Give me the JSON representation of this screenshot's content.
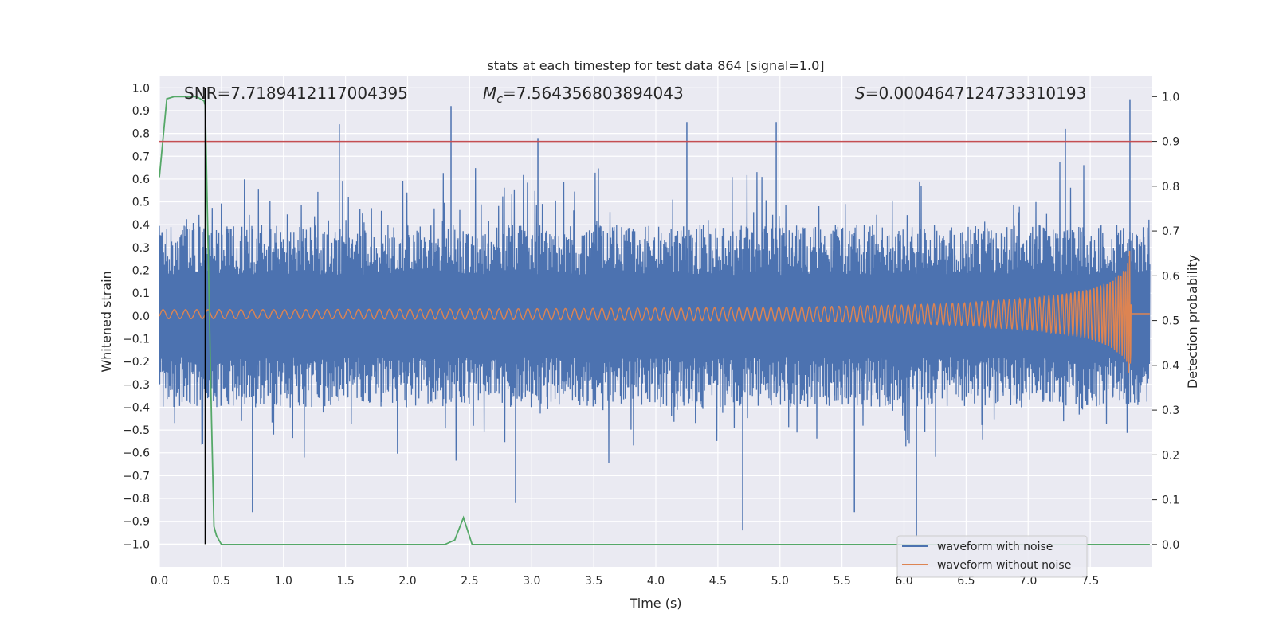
{
  "chart_data": {
    "type": "line",
    "title": "stats at each timestep for test data 864 [signal=1.0]",
    "xlabel": "Time (s)",
    "ylabel": "Whitened strain",
    "y2label": "Detection probability",
    "xlim": [
      0.0,
      8.0
    ],
    "ylim": [
      -1.1,
      1.05
    ],
    "y2lim": [
      -0.05,
      1.045
    ],
    "xticks": [
      "0.0",
      "0.5",
      "1.0",
      "1.5",
      "2.0",
      "2.5",
      "3.0",
      "3.5",
      "4.0",
      "4.5",
      "5.0",
      "5.5",
      "6.0",
      "6.5",
      "7.0",
      "7.5"
    ],
    "yticks": [
      "1.0",
      "0.9",
      "0.8",
      "0.7",
      "0.6",
      "0.5",
      "0.4",
      "0.3",
      "0.2",
      "0.1",
      "0.0",
      "-0.1",
      "-0.2",
      "-0.3",
      "-0.4",
      "-0.5",
      "-0.6",
      "-0.7",
      "-0.8",
      "-0.9",
      "-1.0"
    ],
    "y2ticks": [
      "1.0",
      "0.9",
      "0.8",
      "0.7",
      "0.6",
      "0.5",
      "0.4",
      "0.3",
      "0.2",
      "0.1",
      "0.0"
    ],
    "annotations": {
      "snr": "SNR=7.7189412117004395",
      "mc_symbol": "M",
      "mc_sub": "c",
      "mc_value": "=7.564356803894043",
      "s_symbol": "S",
      "s_value": "=0.0004647124733310193"
    },
    "legend": [
      "waveform with noise",
      "waveform without noise"
    ],
    "legend_position": "lower-right",
    "series": [
      {
        "name": "waveform with noise",
        "color": "#4c72b0",
        "envelope": "noise band roughly ±0.3 to ±0.5 with spikes up to 0.95 and down to -0.96",
        "spikes_x": [
          0.75,
          1.45,
          2.35,
          2.87,
          3.05,
          4.25,
          4.7,
          4.97,
          5.6,
          6.1,
          7.3,
          7.82
        ],
        "spikes_y": [
          -0.86,
          0.84,
          0.92,
          -0.82,
          0.78,
          0.85,
          -0.94,
          0.85,
          -0.86,
          -0.97,
          0.82,
          0.95
        ]
      },
      {
        "name": "waveform without noise",
        "color": "#dd8452",
        "description": "chirp signal, small amplitude growing until merger near 7.82 s",
        "x": [
          0.0,
          1.0,
          2.0,
          3.0,
          4.0,
          5.0,
          6.0,
          6.5,
          7.0,
          7.3,
          7.5,
          7.65,
          7.75,
          7.8,
          7.82,
          7.84,
          8.0
        ],
        "amplitude": [
          0.02,
          0.02,
          0.022,
          0.024,
          0.027,
          0.03,
          0.04,
          0.05,
          0.07,
          0.09,
          0.11,
          0.14,
          0.18,
          0.22,
          0.3,
          0.0,
          0.0
        ]
      },
      {
        "name": "detection probability",
        "axis": "right",
        "color": "#55a868",
        "x": [
          0.0,
          0.06,
          0.12,
          0.18,
          0.24,
          0.3,
          0.36,
          0.37,
          0.42,
          0.44,
          0.46,
          0.5,
          2.3,
          2.38,
          2.45,
          2.52,
          7.98
        ],
        "values": [
          0.82,
          0.995,
          1.0,
          1.0,
          1.0,
          1.0,
          0.99,
          0.98,
          0.28,
          0.04,
          0.02,
          0.0,
          0.0,
          0.01,
          0.06,
          0.0,
          0.0
        ]
      }
    ],
    "threshold": {
      "axis": "right",
      "value": 0.9,
      "color": "#c44e52"
    },
    "detection_marker": {
      "x": 0.37,
      "color": "#000000"
    }
  }
}
